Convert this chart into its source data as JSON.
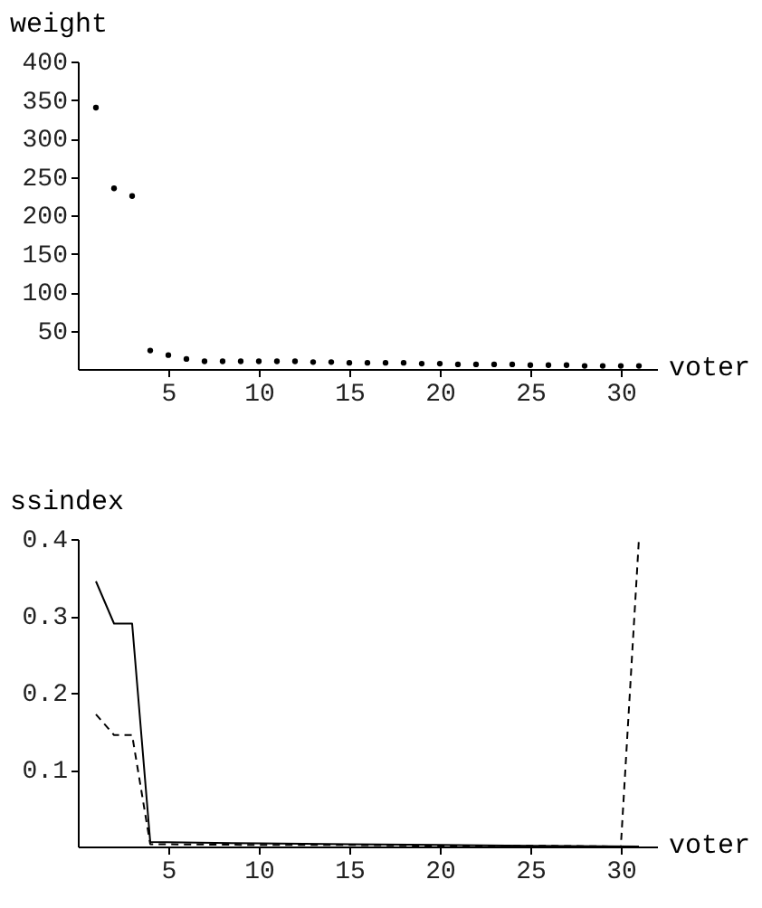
{
  "chart_data": [
    {
      "type": "scatter",
      "xlabel": "voter",
      "ylabel": "weight",
      "xlim": [
        0,
        32
      ],
      "ylim": [
        0,
        400
      ],
      "xticks": [
        5,
        10,
        15,
        20,
        25,
        30
      ],
      "yticks": [
        50,
        100,
        150,
        200,
        250,
        300,
        350,
        400
      ],
      "grid": false,
      "marker": "circle",
      "series": [
        {
          "color": "#000000",
          "x": [
            1,
            2,
            3,
            4,
            5,
            6,
            7,
            8,
            9,
            10,
            11,
            12,
            13,
            14,
            15,
            16,
            17,
            18,
            19,
            20,
            21,
            22,
            23,
            24,
            25,
            26,
            27,
            28,
            29,
            30,
            31
          ],
          "values": [
            340,
            235,
            225,
            24,
            18,
            13,
            10,
            10,
            10,
            10,
            10,
            10,
            9,
            9,
            8,
            8,
            8,
            8,
            7,
            7,
            6,
            6,
            6,
            6,
            5,
            5,
            5,
            4,
            4,
            4,
            4
          ]
        }
      ]
    },
    {
      "type": "line",
      "xlabel": "voter",
      "ylabel": "ssindex",
      "xlim": [
        0,
        32
      ],
      "ylim": [
        0,
        0.4
      ],
      "xticks": [
        5,
        10,
        15,
        20,
        25,
        30
      ],
      "yticks": [
        0.1,
        0.2,
        0.3,
        0.4
      ],
      "grid": false,
      "marker": "none",
      "series": [
        {
          "color": "#000000",
          "line_style": "solid",
          "x": [
            1,
            2,
            3,
            4,
            10,
            15,
            20,
            25,
            31
          ],
          "values": [
            0.345,
            0.29,
            0.29,
            0.006,
            0.004,
            0.003,
            0.002,
            0.001,
            0.0
          ]
        },
        {
          "color": "#000000",
          "line_style": "dashed",
          "x": [
            1,
            2,
            3,
            4,
            10,
            15,
            20,
            25,
            30,
            31
          ],
          "values": [
            0.172,
            0.145,
            0.145,
            0.003,
            0.002,
            0.002,
            0.001,
            0.001,
            0.0,
            0.4
          ]
        }
      ]
    }
  ]
}
